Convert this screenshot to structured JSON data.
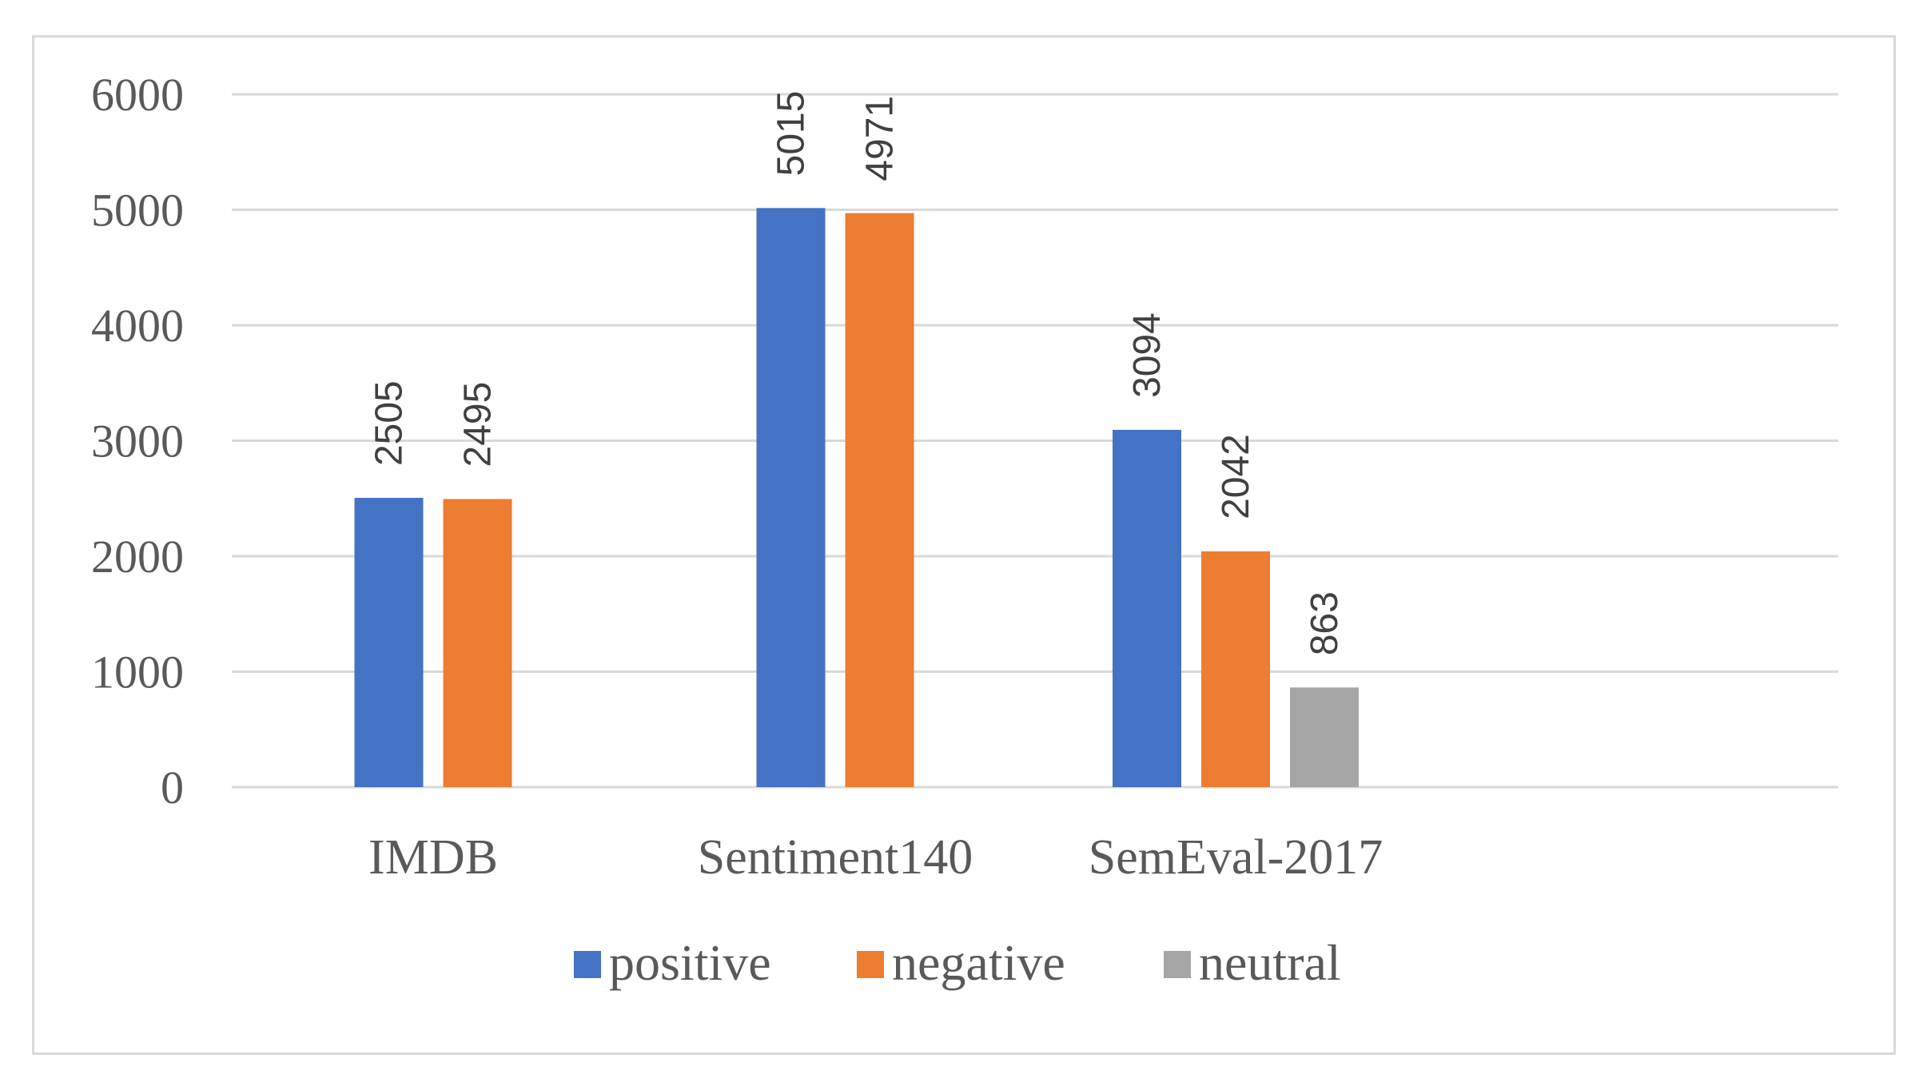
{
  "chart_data": {
    "type": "bar",
    "title": "",
    "xlabel": "",
    "ylabel": "",
    "ylim": [
      0,
      6000
    ],
    "yticks": [
      0,
      1000,
      2000,
      3000,
      4000,
      5000,
      6000
    ],
    "grid": true,
    "legend_position": "bottom",
    "categories": [
      "IMDB",
      "Sentiment140",
      "SemEval-2017"
    ],
    "series": [
      {
        "name": "positive",
        "color": "#4472c4",
        "values": [
          2505,
          5015,
          3094
        ]
      },
      {
        "name": "negative",
        "color": "#ed7d31",
        "values": [
          2495,
          4971,
          2042
        ]
      },
      {
        "name": "neutral",
        "color": "#a5a5a5",
        "values": [
          null,
          null,
          863
        ]
      }
    ]
  }
}
